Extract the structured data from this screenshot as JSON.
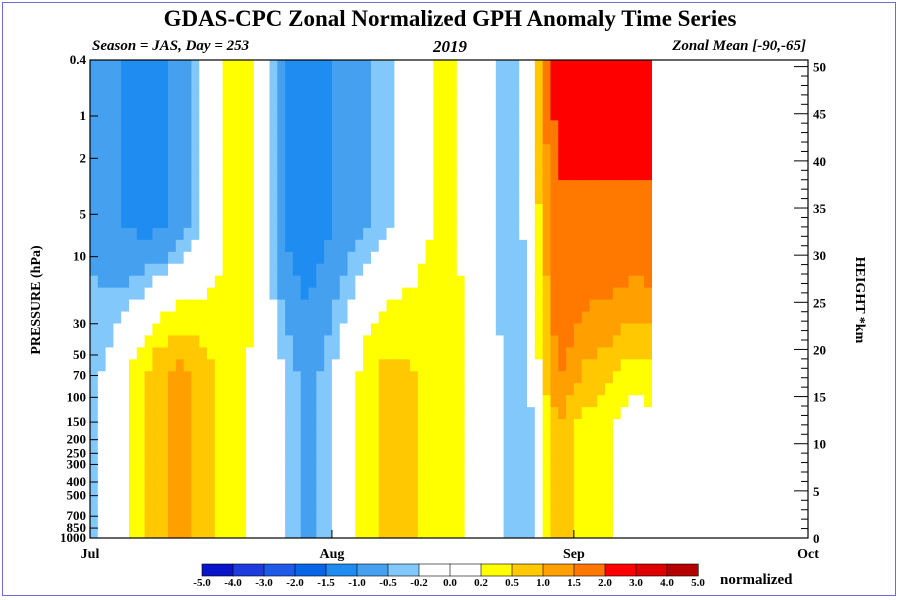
{
  "title": "GDAS-CPC Zonal Normalized GPH Anomaly Time Series",
  "subtitle_left": "Season = JAS, Day = 253",
  "subtitle_center": "2019",
  "subtitle_right": "Zonal Mean [-90,-65]",
  "units_label": "normalized",
  "chart_data": {
    "type": "heatmap",
    "title": "GDAS-CPC Zonal Normalized GPH Anomaly Time Series",
    "xlabel": "",
    "ylabel": "PRESSURE (hPa)",
    "ylabel_right": "HEIGHT *km",
    "x_range_days": [
      0,
      92
    ],
    "x_ticks": [
      {
        "label": "Jul",
        "day": 0
      },
      {
        "label": "Aug",
        "day": 31
      },
      {
        "label": "Sep",
        "day": 62
      },
      {
        "label": "Oct",
        "day": 92
      }
    ],
    "data_end_day": 72,
    "y_scale": "log",
    "y_range_hpa": [
      1000,
      0.4
    ],
    "y_ticks_hpa": [
      0.4,
      1,
      2,
      5,
      10,
      30,
      50,
      70,
      100,
      150,
      200,
      250,
      300,
      400,
      500,
      700,
      850,
      1000
    ],
    "y_tick_labels": [
      "0.4",
      "1",
      "2",
      "5",
      "10",
      "30",
      "50",
      "70",
      "100",
      "150",
      "200",
      "250",
      "300",
      "400",
      "500",
      "700",
      "850",
      "1000"
    ],
    "height_ticks_km": [
      0,
      5,
      10,
      15,
      20,
      25,
      30,
      35,
      40,
      45,
      50
    ],
    "contour_levels": [
      -5.0,
      -4.0,
      -3.0,
      -2.0,
      -1.5,
      -1.0,
      -0.5,
      -0.2,
      0.2,
      0.5,
      1.0,
      1.5,
      2.0,
      3.0,
      4.0,
      5.0
    ],
    "level_labels": [
      "-5.0",
      "-4.0",
      "-3.0",
      "-2.0",
      "-1.5",
      "-1.0",
      "-0.5",
      "-0.2",
      "0.0",
      "0.2",
      "0.5",
      "1.0",
      "1.5",
      "2.0",
      "3.0",
      "4.0",
      "5.0"
    ],
    "colors": [
      "#0a14c8",
      "#1e3cdc",
      "#1e5ae6",
      "#0a64e6",
      "#1e8cf0",
      "#46a0f0",
      "#82c8fa",
      "#ffffff",
      "#ffffff",
      "#ffff00",
      "#ffc800",
      "#ffa000",
      "#ff7800",
      "#ff0000",
      "#dc0000",
      "#b40000"
    ],
    "colorbar_labels": [
      "-5.0",
      "-4.0",
      "-3.0",
      "-2.0",
      "-1.5",
      "-1.0",
      "-0.5",
      "-0.2",
      "0.0",
      "0.2",
      "0.5",
      "1.0",
      "1.5",
      "2.0",
      "3.0",
      "4.0",
      "5.0"
    ],
    "anomaly_structure": [
      {
        "period": "early Jul",
        "upper_levels": "-0.5 to -1.0",
        "lower_levels": "-0.5 to 0.2"
      },
      {
        "period": "mid Jul",
        "upper_levels": "-0.5 to -1.0",
        "lower_levels": "1.0 to 2.0"
      },
      {
        "period": "late Jul",
        "upper_levels": "0.5 to 1.0",
        "lower_levels": "0.2 to 0.5"
      },
      {
        "period": "early Aug",
        "upper_levels": "-1.0 to -1.5",
        "lower_levels": "-0.5 to 0.2"
      },
      {
        "period": "mid Aug",
        "upper_levels": "-0.5",
        "lower_levels": "1.0 to 1.5"
      },
      {
        "period": "late Aug",
        "upper_levels": "-0.5 to 0.5",
        "lower_levels": "0.5 to 1.5"
      },
      {
        "period": "early Sep",
        "upper_levels": "2.0 to 4.0",
        "lower_levels": "-0.5 to 1.0"
      }
    ]
  }
}
